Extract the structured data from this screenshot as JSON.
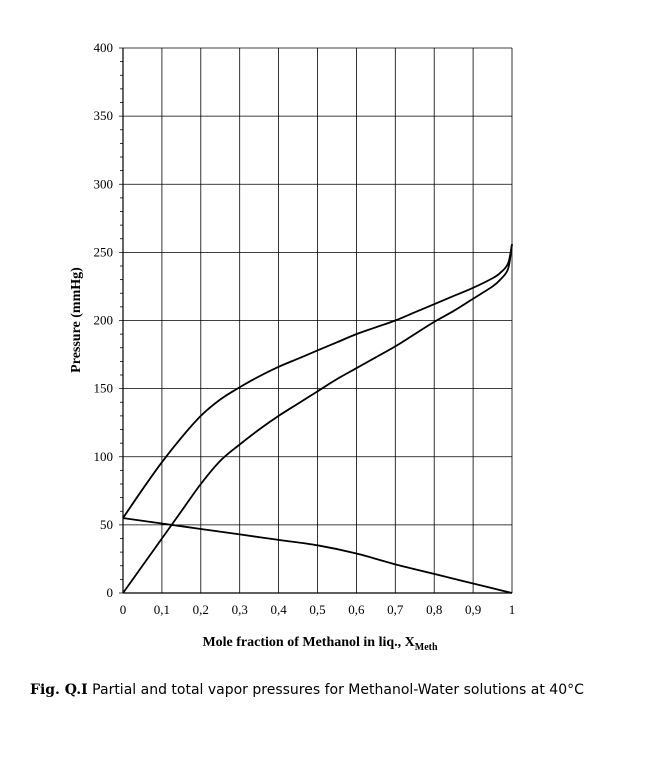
{
  "chart_data": {
    "type": "line",
    "xlabel": "Mole fraction of Methanol in liq., X",
    "xlabel_sub": "Meth",
    "ylabel": "Pressure (mmHg)",
    "xlim": [
      0,
      1
    ],
    "ylim": [
      0,
      400
    ],
    "x_ticks": [
      0,
      0.1,
      0.2,
      0.3,
      0.4,
      0.5,
      0.6,
      0.7,
      0.8,
      0.9,
      1
    ],
    "x_tick_labels": [
      "0",
      "0,1",
      "0,2",
      "0,3",
      "0,4",
      "0,5",
      "0,6",
      "0,7",
      "0,8",
      "0,9",
      "1"
    ],
    "y_ticks": [
      0,
      50,
      100,
      150,
      200,
      250,
      300,
      350,
      400
    ],
    "y_tick_labels": [
      "0",
      "50",
      "100",
      "150",
      "200",
      "250",
      "300",
      "350",
      "400"
    ],
    "grid": true,
    "series": [
      {
        "x": [
          0,
          0.05,
          0.1,
          0.15,
          0.2,
          0.25,
          0.3,
          0.35,
          0.4,
          0.45,
          0.5,
          0.55,
          0.6,
          0.65,
          0.7,
          0.75,
          0.8,
          0.85,
          0.9,
          0.95,
          0.97,
          0.99,
          1
        ],
        "values": [
          55,
          76,
          96,
          114,
          130,
          142,
          151,
          159,
          166,
          172,
          178,
          184,
          190,
          195,
          200,
          206,
          212,
          218,
          224,
          231,
          235,
          242,
          256
        ]
      },
      {
        "x": [
          0,
          0.05,
          0.1,
          0.15,
          0.2,
          0.25,
          0.3,
          0.35,
          0.4,
          0.45,
          0.5,
          0.55,
          0.6,
          0.65,
          0.7,
          0.75,
          0.8,
          0.85,
          0.9,
          0.95,
          0.97,
          0.99,
          1
        ],
        "values": [
          0,
          20,
          40,
          60,
          80,
          97,
          109,
          120,
          130,
          139,
          148,
          157,
          165,
          173,
          181,
          190,
          199,
          207,
          216,
          225,
          230,
          238,
          256
        ]
      },
      {
        "x": [
          0,
          0.1,
          0.2,
          0.3,
          0.4,
          0.5,
          0.6,
          0.7,
          0.8,
          0.9,
          1
        ],
        "values": [
          55,
          51,
          47,
          43,
          39,
          35,
          29,
          21,
          14,
          7,
          0
        ]
      }
    ]
  },
  "caption": {
    "label": "Fig. Q.I",
    "text": "Partial and total vapor pressures for Methanol-Water solutions at 40°C"
  }
}
